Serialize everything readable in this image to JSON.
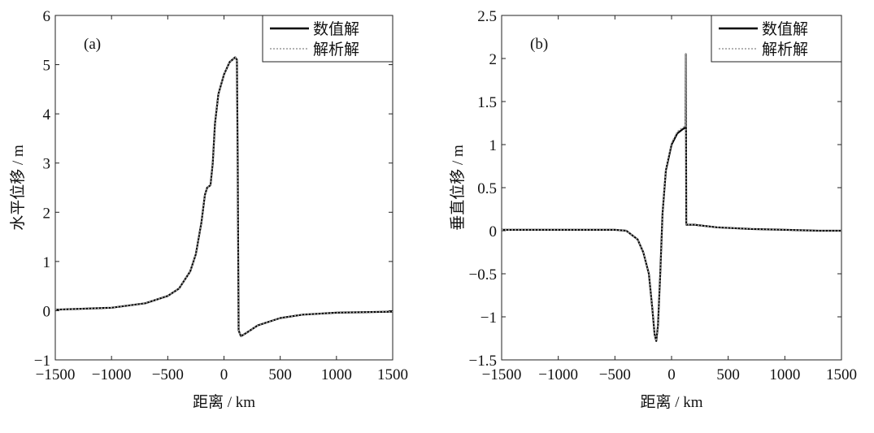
{
  "chart_data": [
    {
      "type": "line",
      "panel_label": "(a)",
      "xlabel": "距离 / km",
      "ylabel": "水平位移 / m",
      "xlim": [
        -1500,
        1500
      ],
      "ylim": [
        -1,
        6
      ],
      "xticks": [
        -1500,
        -1000,
        -500,
        0,
        500,
        1000,
        1500
      ],
      "xtick_labels": [
        "−1500",
        "−1000",
        "−500",
        "0",
        "500",
        "1000",
        "1500"
      ],
      "yticks": [
        -1,
        0,
        1,
        2,
        3,
        4,
        5,
        6
      ],
      "ytick_labels": [
        "−1",
        "0",
        "1",
        "2",
        "3",
        "4",
        "5",
        "6"
      ],
      "legend": {
        "position": "top-right",
        "entries": [
          "数值解",
          "解析解"
        ]
      },
      "series": [
        {
          "name": "数值解",
          "style": "solid",
          "color": "#000000",
          "x": [
            -1500,
            -1000,
            -700,
            -500,
            -400,
            -300,
            -250,
            -200,
            -170,
            -150,
            -120,
            -100,
            -80,
            -50,
            0,
            50,
            100,
            115,
            122,
            130,
            150,
            200,
            300,
            500,
            700,
            1000,
            1500
          ],
          "y": [
            0.02,
            0.06,
            0.15,
            0.3,
            0.45,
            0.8,
            1.15,
            1.8,
            2.35,
            2.5,
            2.55,
            3.0,
            3.8,
            4.4,
            4.8,
            5.05,
            5.15,
            5.1,
            3.0,
            -0.4,
            -0.52,
            -0.45,
            -0.3,
            -0.15,
            -0.08,
            -0.04,
            -0.02
          ]
        },
        {
          "name": "解析解",
          "style": "dotted",
          "color": "#999999",
          "x": [
            -1500,
            -1000,
            -700,
            -500,
            -400,
            -300,
            -250,
            -200,
            -170,
            -150,
            -120,
            -100,
            -80,
            -50,
            0,
            50,
            100,
            115,
            122,
            130,
            150,
            200,
            300,
            500,
            700,
            1000,
            1500
          ],
          "y": [
            0.02,
            0.06,
            0.15,
            0.3,
            0.45,
            0.8,
            1.15,
            1.8,
            2.35,
            2.5,
            2.55,
            3.0,
            3.8,
            4.4,
            4.8,
            5.05,
            5.15,
            5.1,
            3.0,
            -0.4,
            -0.52,
            -0.45,
            -0.3,
            -0.15,
            -0.08,
            -0.04,
            -0.02
          ]
        }
      ]
    },
    {
      "type": "line",
      "panel_label": "(b)",
      "xlabel": "距离 / km",
      "ylabel": "垂直位移 / m",
      "xlim": [
        -1500,
        1500
      ],
      "ylim": [
        -1.5,
        2.5
      ],
      "xticks": [
        -1500,
        -1000,
        -500,
        0,
        500,
        1000,
        1500
      ],
      "xtick_labels": [
        "−1500",
        "−1000",
        "−500",
        "0",
        "500",
        "1000",
        "1500"
      ],
      "yticks": [
        -1.5,
        -1,
        -0.5,
        0,
        0.5,
        1,
        1.5,
        2,
        2.5
      ],
      "ytick_labels": [
        "−1.5",
        "−1",
        "−0.5",
        "0",
        "0.5",
        "1",
        "1.5",
        "2",
        "2.5"
      ],
      "legend": {
        "position": "top-right",
        "entries": [
          "数值解",
          "解析解"
        ]
      },
      "series": [
        {
          "name": "数值解",
          "style": "solid",
          "color": "#000000",
          "x": [
            -1500,
            -800,
            -500,
            -400,
            -300,
            -250,
            -200,
            -170,
            -150,
            -135,
            -120,
            -100,
            -80,
            -50,
            0,
            50,
            100,
            125,
            126,
            130,
            200,
            400,
            700,
            1000,
            1300,
            1500
          ],
          "y": [
            0.01,
            0.01,
            0.01,
            0,
            -0.1,
            -0.25,
            -0.5,
            -0.9,
            -1.2,
            -1.28,
            -1.1,
            -0.5,
            0.2,
            0.7,
            1.0,
            1.13,
            1.18,
            1.2,
            2.05,
            0.07,
            0.07,
            0.04,
            0.02,
            0.01,
            0,
            0
          ]
        },
        {
          "name": "解析解",
          "style": "dotted",
          "color": "#999999",
          "x": [
            -1500,
            -800,
            -500,
            -400,
            -300,
            -250,
            -200,
            -170,
            -150,
            -135,
            -120,
            -100,
            -80,
            -50,
            0,
            50,
            100,
            125,
            126,
            130,
            200,
            400,
            700,
            1000,
            1300,
            1500
          ],
          "y": [
            0.01,
            0.01,
            0.01,
            0,
            -0.1,
            -0.25,
            -0.5,
            -0.9,
            -1.2,
            -1.28,
            -1.1,
            -0.5,
            0.2,
            0.72,
            1.02,
            1.15,
            1.2,
            1.22,
            2.05,
            0.07,
            0.07,
            0.04,
            0.02,
            0.01,
            0,
            0
          ]
        }
      ]
    }
  ]
}
